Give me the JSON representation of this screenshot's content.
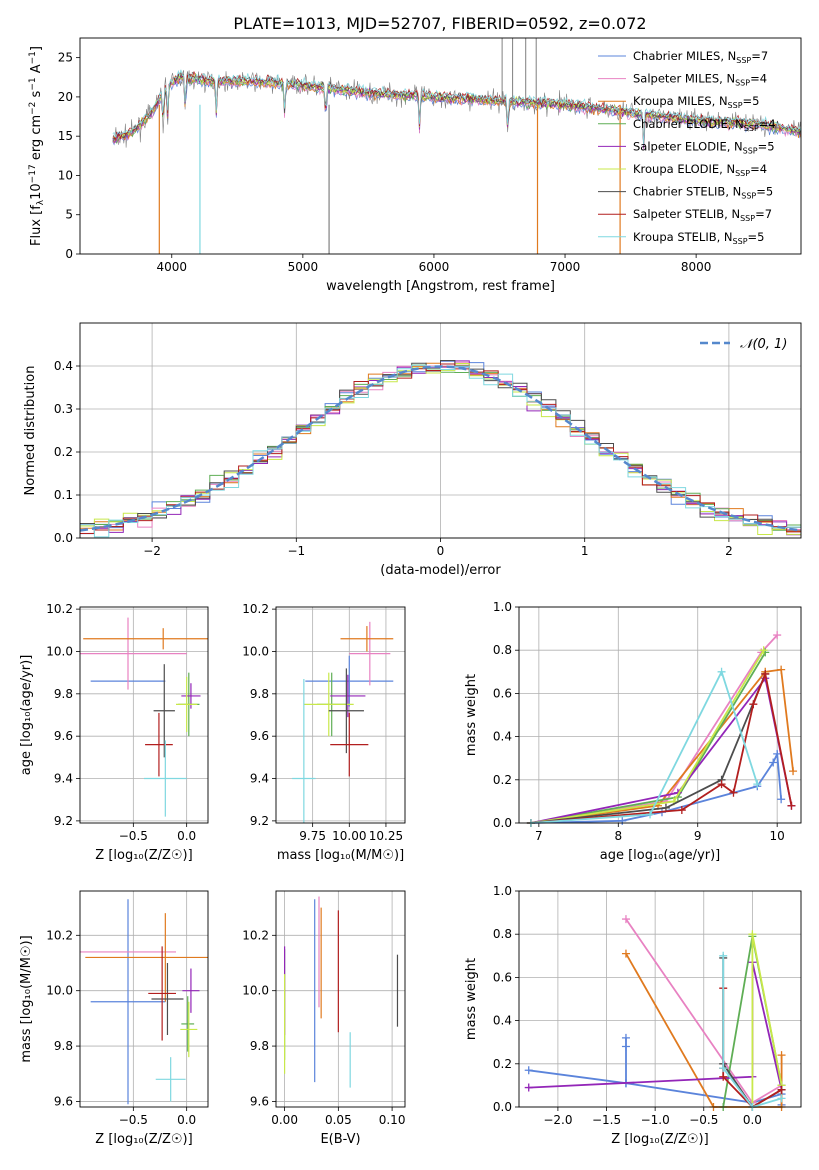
{
  "title": "PLATE=1013, MJD=52707, FIBERID=0592, z=0.072",
  "colors": {
    "chabrier_miles": "#5b84db",
    "salpeter_miles": "#e882c2",
    "kroupa_miles": "#e07a1f",
    "chabrier_elodie": "#5fae55",
    "salpeter_elodie": "#9326b8",
    "kroupa_elodie": "#c8e84a",
    "chabrier_stelib": "#4d4d4d",
    "salpeter_stelib": "#b21f1f",
    "kroupa_stelib": "#7fd8e0",
    "data": "#808080",
    "gauss": "#5588cc"
  },
  "chart_data": [
    {
      "id": "spectrum",
      "type": "line",
      "xlabel": "wavelength [Angstrom, rest frame]",
      "ylabel": "Flux [f_λ10^-17 erg cm^-2 s^-1 A^-1]",
      "xlim": [
        3300,
        8800
      ],
      "ylim": [
        0,
        27.5
      ],
      "xticks": [
        "4000",
        "5000",
        "6000",
        "7000",
        "8000"
      ],
      "yticks": [
        "0",
        "5",
        "10",
        "15",
        "20",
        "25"
      ],
      "legend_position": "top-right",
      "legend": [
        {
          "label": "Chabrier MILES, N",
          "sub": "SSP",
          "n": "=7"
        },
        {
          "label": "Salpeter MILES, N",
          "sub": "SSP",
          "n": "=4"
        },
        {
          "label": "Kroupa MILES, N",
          "sub": "SSP",
          "n": "=5"
        },
        {
          "label": "Chabrier ELODIE, N",
          "sub": "SSP",
          "n": "=4"
        },
        {
          "label": "Salpeter ELODIE, N",
          "sub": "SSP",
          "n": "=5"
        },
        {
          "label": "Kroupa ELODIE, N",
          "sub": "SSP",
          "n": "=4"
        },
        {
          "label": "Chabrier STELIB, N",
          "sub": "SSP",
          "n": "=5"
        },
        {
          "label": "Salpeter STELIB, N",
          "sub": "SSP",
          "n": "=7"
        },
        {
          "label": "Kroupa STELIB, N",
          "sub": "SSP",
          "n": "=5"
        }
      ],
      "continuum": [
        [
          3550,
          14.5
        ],
        [
          3700,
          15.5
        ],
        [
          3850,
          18
        ],
        [
          3950,
          21
        ],
        [
          4050,
          22.5
        ],
        [
          4300,
          22
        ],
        [
          4600,
          22
        ],
        [
          5000,
          21.5
        ],
        [
          5500,
          20.5
        ],
        [
          6000,
          20
        ],
        [
          6500,
          19.5
        ],
        [
          7000,
          19
        ],
        [
          7500,
          18
        ],
        [
          8000,
          17
        ],
        [
          8500,
          16.5
        ],
        [
          8800,
          15.5
        ]
      ]
    },
    {
      "id": "residuals",
      "type": "area",
      "xlabel": "(data-model)/error",
      "ylabel": "Normed distribution",
      "xlim": [
        -2.5,
        2.5
      ],
      "ylim": [
        0,
        0.5
      ],
      "xticks": [
        "−2",
        "−1",
        "0",
        "1",
        "2"
      ],
      "yticks": [
        "0.0",
        "0.1",
        "0.2",
        "0.3",
        "0.4"
      ],
      "legend": "𝒩(0, 1)",
      "legend_position": "top-right",
      "bin_width": 0.1,
      "grid": true
    },
    {
      "id": "age_vs_Z",
      "type": "scatter",
      "xlabel": "Z [log₁₀(Z/Z☉)]",
      "ylabel": "age  [log₁₀(age/yr)]",
      "xlim": [
        -1.0,
        0.2
      ],
      "ylim": [
        9.19,
        10.21
      ],
      "xticks": [
        "−0.5",
        "0.0"
      ],
      "yticks": [
        "9.2",
        "9.4",
        "9.6",
        "9.8",
        "10.0",
        "10.2"
      ],
      "points": [
        {
          "x": -0.55,
          "y": 9.86,
          "xe": 0.35,
          "ye": 0.0,
          "s": "chabrier_miles"
        },
        {
          "x": -0.55,
          "y": 9.99,
          "xe": 0.55,
          "ye": 0.17,
          "s": "salpeter_miles"
        },
        {
          "x": -0.22,
          "y": 10.06,
          "xe": 0.75,
          "ye": 0.05,
          "s": "kroupa_miles"
        },
        {
          "x": 0.02,
          "y": 9.75,
          "xe": 0.1,
          "ye": 0.15,
          "s": "chabrier_elodie"
        },
        {
          "x": 0.04,
          "y": 9.79,
          "xe": 0.09,
          "ye": 0.06,
          "s": "salpeter_elodie"
        },
        {
          "x": 0.0,
          "y": 9.75,
          "xe": 0.1,
          "ye": 0.13,
          "s": "kroupa_elodie"
        },
        {
          "x": -0.21,
          "y": 9.72,
          "xe": 0.1,
          "ye": 0.22,
          "s": "chabrier_stelib"
        },
        {
          "x": -0.26,
          "y": 9.56,
          "xe": 0.13,
          "ye": 0.15,
          "s": "salpeter_stelib"
        },
        {
          "x": -0.2,
          "y": 9.4,
          "xe": 0.2,
          "ye": 0.18,
          "s": "kroupa_stelib"
        }
      ]
    },
    {
      "id": "age_vs_mass",
      "type": "scatter",
      "xlabel": "mass [log₁₀(M/M☉)]",
      "ylabel": "",
      "xlim": [
        9.5,
        10.38
      ],
      "ylim": [
        9.19,
        10.21
      ],
      "xticks": [
        "9.75",
        "10.00",
        "10.25"
      ],
      "yticks": [
        "9.2",
        "9.4",
        "9.6",
        "9.8",
        "10.0",
        "10.2"
      ],
      "points": [
        {
          "x": 10.0,
          "y": 9.86,
          "xe": 0.3,
          "ye": 0.12,
          "s": "chabrier_miles"
        },
        {
          "x": 10.14,
          "y": 9.99,
          "xe": 0.14,
          "ye": 0.15,
          "s": "salpeter_miles"
        },
        {
          "x": 10.12,
          "y": 10.06,
          "xe": 0.18,
          "ye": 0.06,
          "s": "kroupa_miles"
        },
        {
          "x": 9.88,
          "y": 9.75,
          "xe": 0.1,
          "ye": 0.15,
          "s": "chabrier_elodie"
        },
        {
          "x": 9.99,
          "y": 9.79,
          "xe": 0.12,
          "ye": 0.1,
          "s": "salpeter_elodie"
        },
        {
          "x": 9.86,
          "y": 9.75,
          "xe": 0.17,
          "ye": 0.15,
          "s": "kroupa_elodie"
        },
        {
          "x": 9.98,
          "y": 9.72,
          "xe": 0.12,
          "ye": 0.2,
          "s": "chabrier_stelib"
        },
        {
          "x": 10.0,
          "y": 9.56,
          "xe": 0.13,
          "ye": 0.15,
          "s": "salpeter_stelib"
        },
        {
          "x": 9.69,
          "y": 9.4,
          "xe": 0.08,
          "ye": 0.47,
          "s": "kroupa_stelib"
        }
      ]
    },
    {
      "id": "mass_weight_vs_age",
      "type": "line",
      "xlabel": "age  [log₁₀(age/yr)]",
      "ylabel": "mass weight",
      "xlim": [
        6.75,
        10.3
      ],
      "ylim": [
        0,
        1.0
      ],
      "xticks": [
        "7",
        "8",
        "9",
        "10"
      ],
      "yticks": [
        "0.0",
        "0.2",
        "0.4",
        "0.6",
        "0.8",
        "1.0"
      ],
      "grid": true,
      "series": [
        {
          "s": "chabrier_miles",
          "x": [
            6.9,
            8.05,
            8.55,
            9.75,
            9.95,
            10.0,
            10.05
          ],
          "y": [
            0.0,
            0.01,
            0.05,
            0.17,
            0.28,
            0.32,
            0.11
          ]
        },
        {
          "s": "salpeter_miles",
          "x": [
            6.9,
            8.6,
            9.8,
            10.0
          ],
          "y": [
            0.0,
            0.1,
            0.79,
            0.87
          ]
        },
        {
          "s": "kroupa_miles",
          "x": [
            6.9,
            8.5,
            9.85,
            10.05,
            10.2
          ],
          "y": [
            0.0,
            0.08,
            0.7,
            0.71,
            0.24
          ]
        },
        {
          "s": "chabrier_elodie",
          "x": [
            6.9,
            8.75,
            9.85
          ],
          "y": [
            0.0,
            0.12,
            0.79
          ]
        },
        {
          "s": "salpeter_elodie",
          "x": [
            6.9,
            8.75,
            9.85,
            10.18
          ],
          "y": [
            0.0,
            0.14,
            0.67,
            0.08
          ]
        },
        {
          "s": "kroupa_elodie",
          "x": [
            6.9,
            8.7,
            9.83
          ],
          "y": [
            0.0,
            0.1,
            0.8
          ]
        },
        {
          "s": "chabrier_stelib",
          "x": [
            6.9,
            8.6,
            9.3,
            9.85
          ],
          "y": [
            0.0,
            0.07,
            0.2,
            0.69
          ]
        },
        {
          "s": "salpeter_stelib",
          "x": [
            6.9,
            8.8,
            9.3,
            9.45,
            9.7,
            9.85,
            10.18
          ],
          "y": [
            0.0,
            0.06,
            0.18,
            0.14,
            0.55,
            0.69,
            0.08
          ]
        },
        {
          "s": "kroupa_stelib",
          "x": [
            6.9,
            8.4,
            9.3,
            9.75
          ],
          "y": [
            0.0,
            0.04,
            0.7,
            0.18
          ]
        }
      ]
    },
    {
      "id": "mass_vs_Z",
      "type": "scatter",
      "xlabel": "Z [log₁₀(Z/Z☉)]",
      "ylabel": "mass [log₁₀(M/M☉)]",
      "xlim": [
        -1.0,
        0.2
      ],
      "ylim": [
        9.58,
        10.36
      ],
      "xticks": [
        "−0.5",
        "0.0"
      ],
      "yticks": [
        "9.6",
        "9.8",
        "10.0",
        "10.2"
      ],
      "points": [
        {
          "x": -0.55,
          "y": 9.96,
          "xe": 0.35,
          "ye": 0.37,
          "s": "chabrier_miles"
        },
        {
          "x": -0.6,
          "y": 10.14,
          "xe": 0.5,
          "ye": 0.0,
          "s": "salpeter_miles"
        },
        {
          "x": -0.2,
          "y": 10.12,
          "xe": 0.75,
          "ye": 0.16,
          "s": "kroupa_miles"
        },
        {
          "x": 0.01,
          "y": 9.88,
          "xe": 0.06,
          "ye": 0.1,
          "s": "chabrier_elodie"
        },
        {
          "x": 0.04,
          "y": 10.0,
          "xe": 0.08,
          "ye": 0.08,
          "s": "salpeter_elodie"
        },
        {
          "x": 0.02,
          "y": 9.86,
          "xe": 0.08,
          "ye": 0.1,
          "s": "kroupa_elodie"
        },
        {
          "x": -0.18,
          "y": 9.97,
          "xe": 0.15,
          "ye": 0.13,
          "s": "chabrier_stelib"
        },
        {
          "x": -0.23,
          "y": 9.99,
          "xe": 0.13,
          "ye": 0.17,
          "s": "salpeter_stelib"
        },
        {
          "x": -0.15,
          "y": 9.68,
          "xe": 0.14,
          "ye": 0.08,
          "s": "kroupa_stelib"
        }
      ]
    },
    {
      "id": "mass_vs_ebv",
      "type": "scatter",
      "xlabel": "E(B-V)",
      "ylabel": "",
      "xlim": [
        -0.008,
        0.112
      ],
      "ylim": [
        9.58,
        10.36
      ],
      "xticks": [
        "0.00",
        "0.05",
        "0.10"
      ],
      "yticks": [
        "9.6",
        "9.8",
        "10.0",
        "10.2"
      ],
      "points": [
        {
          "x": 0.028,
          "y": 10.0,
          "xe": 0,
          "ye": 0.33,
          "s": "chabrier_miles"
        },
        {
          "x": 0.032,
          "y": 10.14,
          "xe": 0,
          "ye": 0.2,
          "s": "salpeter_miles"
        },
        {
          "x": 0.034,
          "y": 10.1,
          "xe": 0,
          "ye": 0.2,
          "s": "kroupa_miles"
        },
        {
          "x": 0.0,
          "y": 9.95,
          "xe": 0,
          "ye": 0.2,
          "s": "chabrier_elodie"
        },
        {
          "x": 0.0,
          "y": 10.0,
          "xe": 0,
          "ye": 0.16,
          "s": "salpeter_elodie"
        },
        {
          "x": 0.0,
          "y": 9.88,
          "xe": 0,
          "ye": 0.18,
          "s": "kroupa_elodie"
        },
        {
          "x": 0.105,
          "y": 10.0,
          "xe": 0,
          "ye": 0.13,
          "s": "chabrier_stelib"
        },
        {
          "x": 0.05,
          "y": 10.07,
          "xe": 0,
          "ye": 0.22,
          "s": "salpeter_stelib"
        },
        {
          "x": 0.061,
          "y": 9.75,
          "xe": 0,
          "ye": 0.1,
          "s": "kroupa_stelib"
        }
      ]
    },
    {
      "id": "mass_weight_vs_Z",
      "type": "line",
      "xlabel": "Z [log₁₀(Z/Z☉)]",
      "ylabel": "mass weight",
      "xlim": [
        -2.4,
        0.5
      ],
      "ylim": [
        0,
        1.0
      ],
      "xticks": [
        "−2.0",
        "−1.5",
        "−1.0",
        "−0.5",
        "0.0"
      ],
      "yticks": [
        "0.0",
        "0.2",
        "0.4",
        "0.6",
        "0.8",
        "1.0"
      ],
      "grid": true,
      "series": [
        {
          "s": "chabrier_miles",
          "x": [
            -2.3,
            -1.3,
            -1.3,
            -1.3,
            -1.3,
            0.0,
            0.3,
            0.3
          ],
          "y": [
            0.17,
            0.11,
            0.28,
            0.32,
            0.11,
            0.02,
            0.06,
            0.01
          ]
        },
        {
          "s": "salpeter_miles",
          "x": [
            -1.3,
            0.0,
            0.3
          ],
          "y": [
            0.87,
            0.02,
            0.1
          ]
        },
        {
          "s": "kroupa_miles",
          "x": [
            -1.3,
            -0.4,
            0.3,
            0.3
          ],
          "y": [
            0.71,
            0.0,
            0.0,
            0.24
          ]
        },
        {
          "s": "chabrier_elodie",
          "x": [
            -0.3,
            0.0,
            0.3
          ],
          "y": [
            0.0,
            0.79,
            0.1
          ]
        },
        {
          "s": "salpeter_elodie",
          "x": [
            -2.3,
            0.0,
            0.0,
            0.3
          ],
          "y": [
            0.09,
            0.14,
            0.67,
            0.08
          ]
        },
        {
          "s": "kroupa_elodie",
          "x": [
            0.0,
            0.0,
            0.3
          ],
          "y": [
            0.0,
            0.8,
            0.1
          ]
        },
        {
          "s": "chabrier_stelib",
          "x": [
            -0.3,
            -0.3,
            0.0,
            0.3
          ],
          "y": [
            0.69,
            0.2,
            0.0,
            0.08
          ]
        },
        {
          "s": "salpeter_stelib",
          "x": [
            -0.3,
            -0.3,
            -0.3,
            0.0,
            0.3
          ],
          "y": [
            0.55,
            0.18,
            0.14,
            0.0,
            0.08
          ]
        },
        {
          "s": "kroupa_stelib",
          "x": [
            -0.3,
            -0.3,
            0.0,
            0.3
          ],
          "y": [
            0.7,
            0.18,
            0.0,
            0.04
          ]
        }
      ]
    }
  ]
}
